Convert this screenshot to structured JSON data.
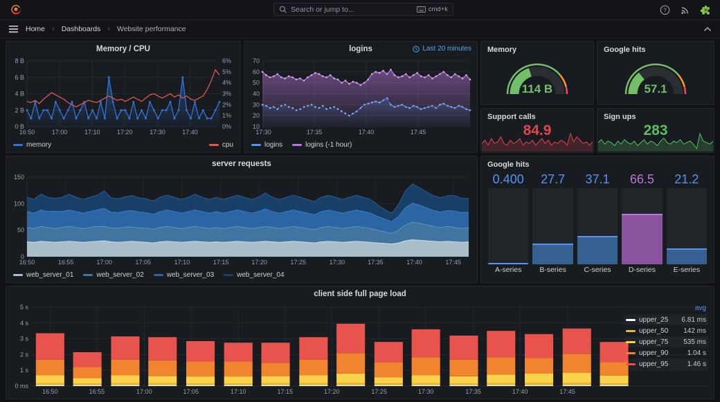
{
  "topbar": {
    "search_placeholder": "Search or jump to...",
    "shortcut": "cmd+k"
  },
  "breadcrumb": {
    "items": [
      "Home",
      "Dashboards",
      "Website performance"
    ]
  },
  "panels": {
    "memcpu": {
      "title": "Memory / CPU",
      "yleft": [
        "0 B",
        "2 B",
        "4 B",
        "6 B",
        "8 B"
      ],
      "yright": [
        "0%",
        "1%",
        "2%",
        "3%",
        "4%",
        "5%",
        "6%"
      ],
      "xticks": {
        "labels": [
          "16:50",
          "17:00",
          "17:10",
          "17:20",
          "17:30",
          "17:40"
        ],
        "fracs": [
          0,
          0.169,
          0.339,
          0.508,
          0.678,
          0.847
        ]
      },
      "series": {
        "memory": {
          "name": "memory",
          "color": "#3274D9",
          "ymax": 8,
          "vals": [
            2,
            1,
            3,
            1,
            2,
            2,
            1,
            3,
            2,
            1,
            2,
            3,
            1,
            2,
            3,
            1,
            2,
            1,
            3,
            1,
            6,
            3,
            1,
            2,
            2,
            1,
            3,
            1,
            2,
            1,
            3,
            2,
            1,
            2,
            2,
            3,
            1,
            2,
            6,
            2,
            1,
            3,
            1,
            2,
            1,
            1,
            2,
            3
          ]
        },
        "cpu": {
          "name": "cpu",
          "color": "#E0584E",
          "ymax": 6,
          "vals": [
            2.3,
            2.2,
            2.4,
            2.1,
            2.5,
            2.8,
            3.1,
            2.9,
            2.7,
            2.5,
            2.2,
            2.0,
            1.8,
            2.0,
            2.2,
            2.4,
            2.3,
            2.2,
            2.4,
            2.6,
            2.8,
            2.6,
            2.4,
            2.5,
            2.3,
            2.5,
            2.7,
            2.5,
            2.3,
            2.6,
            2.9,
            3.0,
            2.8,
            2.6,
            2.8,
            3.0,
            2.7,
            2.9,
            2.6,
            2.8,
            2.5,
            2.4,
            2.6,
            2.8,
            3.4,
            4.2,
            5.2,
            4.7
          ]
        }
      },
      "legend": [
        {
          "label": "memory",
          "color": "#3274D9"
        },
        {
          "label": "cpu",
          "color": "#E0584E"
        }
      ]
    },
    "logins": {
      "title": "logins",
      "time_override": "Last 20 minutes",
      "ylabels": [
        "10",
        "20",
        "30",
        "40",
        "50",
        "60",
        "70"
      ],
      "ymin": 10,
      "ymax": 70,
      "xticks": {
        "labels": [
          "17:30",
          "17:35",
          "17:40",
          "17:45"
        ],
        "fracs": [
          0.005,
          0.25,
          0.5,
          0.75
        ]
      },
      "series": {
        "prev": {
          "name": "logins (-1 hour)",
          "color": "#B877D9",
          "dot": "#D2A8E8",
          "vals": [
            60,
            57,
            55,
            56,
            58,
            55,
            54,
            56,
            55,
            53,
            54,
            52,
            55,
            57,
            59,
            58,
            56,
            55,
            57,
            54,
            53,
            50,
            52,
            49,
            51,
            50,
            48,
            50,
            53,
            58,
            60,
            59,
            61,
            58,
            62,
            57,
            55,
            56,
            58,
            55,
            57,
            59,
            56,
            55,
            57,
            54,
            56,
            58,
            60,
            57,
            55,
            58,
            56,
            54,
            57,
            53
          ]
        },
        "cur": {
          "name": "logins",
          "color": "#5794F2",
          "dot": "#7FAcF5",
          "vals": [
            30,
            29,
            27,
            28,
            26,
            29,
            30,
            28,
            27,
            25,
            26,
            28,
            29,
            30,
            28,
            27,
            29,
            26,
            27,
            28,
            26,
            24,
            22,
            20,
            22,
            24,
            27,
            30,
            31,
            32,
            33,
            32,
            34,
            36,
            30,
            28,
            29,
            30,
            28,
            27,
            29,
            28,
            26,
            27,
            28,
            29,
            27,
            30,
            31,
            29,
            28,
            27,
            29,
            28,
            26,
            25
          ]
        }
      },
      "legend": [
        {
          "label": "logins",
          "color": "#5794F2"
        },
        {
          "label": "logins (-1 hour)",
          "color": "#B877D9"
        }
      ]
    },
    "gauge_mem": {
      "title": "Memory",
      "value": "114 B",
      "pct": 0.4,
      "color": "#73BF69"
    },
    "gauge_google": {
      "title": "Google hits",
      "value": "57.1",
      "pct": 0.29,
      "color": "#73BF69"
    },
    "support": {
      "title": "Support calls",
      "value": "84.9",
      "color": "#E0454E",
      "spark": [
        4,
        6,
        3,
        7,
        4,
        5,
        8,
        4,
        3,
        6,
        4,
        5,
        7,
        3,
        5,
        4,
        6,
        3,
        5,
        7,
        4,
        6,
        3,
        5,
        4,
        6,
        5,
        3,
        10,
        5,
        8,
        6,
        4,
        5,
        3,
        5
      ]
    },
    "signups": {
      "title": "Sign ups",
      "value": "283",
      "color": "#5CBE60",
      "spark": [
        5,
        7,
        4,
        6,
        5,
        3,
        6,
        4,
        7,
        5,
        4,
        6,
        3,
        5,
        7,
        4,
        6,
        5,
        3,
        6,
        8,
        5,
        4,
        6,
        5,
        7,
        4,
        5,
        6,
        4,
        1,
        11,
        6,
        5,
        4,
        6
      ]
    },
    "server": {
      "title": "server requests",
      "ylabels": [
        "0",
        "50",
        "100",
        "150"
      ],
      "ymax": 150,
      "xticks": {
        "labels": [
          "16:50",
          "16:55",
          "17:00",
          "17:05",
          "17:10",
          "17:15",
          "17:20",
          "17:25",
          "17:30",
          "17:35",
          "17:40",
          "17:45"
        ],
        "fracs": [
          0,
          0.088,
          0.175,
          0.263,
          0.351,
          0.439,
          0.526,
          0.614,
          0.702,
          0.789,
          0.877,
          0.965
        ]
      },
      "series": [
        {
          "name": "web_server_01",
          "fill": "#A8BFCB",
          "line": "#CBDCE5",
          "vals": [
            28,
            27,
            29,
            28,
            27,
            28,
            29,
            28,
            27,
            28,
            29,
            30,
            28,
            27,
            28,
            29,
            28,
            27,
            26,
            28,
            29,
            28,
            27,
            28,
            29,
            28,
            27,
            28,
            27,
            28,
            29,
            28,
            27,
            28,
            29,
            28,
            27,
            28,
            29,
            28,
            27,
            26,
            28,
            29,
            28,
            27,
            28,
            29,
            28,
            27,
            26,
            25,
            24,
            26,
            30,
            32,
            31,
            30,
            29,
            28,
            29,
            28,
            27,
            28
          ]
        },
        {
          "name": "web_server_02",
          "fill": "#41759F",
          "line": "#5E93BC",
          "vals": [
            27,
            26,
            28,
            27,
            26,
            27,
            28,
            27,
            26,
            27,
            28,
            27,
            26,
            27,
            28,
            27,
            26,
            27,
            26,
            27,
            28,
            27,
            26,
            27,
            28,
            27,
            26,
            27,
            26,
            27,
            28,
            27,
            26,
            27,
            28,
            27,
            26,
            27,
            28,
            27,
            26,
            25,
            27,
            28,
            27,
            26,
            27,
            28,
            27,
            26,
            24,
            22,
            20,
            24,
            30,
            33,
            32,
            30,
            28,
            27,
            28,
            27,
            26,
            27
          ]
        },
        {
          "name": "web_server_03",
          "fill": "#2B65A4",
          "line": "#3D7DC4",
          "vals": [
            30,
            29,
            31,
            30,
            33,
            30,
            31,
            30,
            29,
            30,
            31,
            34,
            30,
            29,
            30,
            31,
            30,
            29,
            28,
            30,
            31,
            30,
            29,
            30,
            31,
            30,
            29,
            30,
            29,
            30,
            31,
            30,
            29,
            30,
            33,
            30,
            29,
            30,
            31,
            30,
            29,
            28,
            30,
            31,
            30,
            29,
            30,
            31,
            30,
            29,
            26,
            24,
            22,
            26,
            33,
            36,
            34,
            32,
            30,
            29,
            30,
            31,
            30,
            29
          ]
        },
        {
          "name": "web_server_04",
          "fill": "#173F68",
          "line": "#2B5E94",
          "vals": [
            27,
            26,
            30,
            27,
            24,
            27,
            30,
            27,
            26,
            27,
            28,
            33,
            27,
            26,
            27,
            28,
            27,
            26,
            25,
            27,
            28,
            27,
            26,
            27,
            30,
            27,
            26,
            27,
            26,
            27,
            28,
            27,
            26,
            27,
            30,
            27,
            26,
            27,
            28,
            27,
            26,
            25,
            27,
            28,
            27,
            26,
            27,
            28,
            27,
            26,
            22,
            18,
            16,
            22,
            32,
            36,
            33,
            30,
            28,
            27,
            28,
            29,
            27,
            26
          ]
        }
      ]
    },
    "bargauge": {
      "title": "Google hits",
      "bars": [
        {
          "label": "A-series",
          "value": "0.400",
          "pct": 0.4,
          "color": "#5794F2",
          "fill": "#3A66A0"
        },
        {
          "label": "B-series",
          "value": "27.7",
          "pct": 27.7,
          "color": "#5794F2",
          "fill": "#35608F"
        },
        {
          "label": "C-series",
          "value": "37.1",
          "pct": 37.1,
          "color": "#5794F2",
          "fill": "#35608F"
        },
        {
          "label": "D-series",
          "value": "66.5",
          "pct": 66.5,
          "color": "#B877D9",
          "fill": "#8A539E"
        },
        {
          "label": "E-series",
          "value": "21.2",
          "pct": 21.2,
          "color": "#5794F2",
          "fill": "#35608F"
        }
      ]
    },
    "pageload": {
      "title": "client side full page load",
      "ylabels": [
        "0 ms",
        "1 s",
        "2 s",
        "3 s",
        "4 s",
        "5 s"
      ],
      "ymax": 5,
      "xticks": {
        "labels": [
          "16:50",
          "16:55",
          "17:00",
          "17:05",
          "17:10",
          "17:15",
          "17:20",
          "17:25",
          "17:30",
          "17:35",
          "17:40",
          "17:45"
        ],
        "fracs": [
          0.028,
          0.097,
          0.167,
          0.236,
          0.306,
          0.375,
          0.444,
          0.514,
          0.583,
          0.653,
          0.722,
          0.792
        ]
      },
      "bar_fracs": [
        0.028,
        0.083,
        0.139,
        0.194,
        0.25,
        0.306,
        0.361,
        0.417,
        0.472,
        0.528,
        0.583,
        0.639,
        0.694,
        0.75,
        0.806,
        0.861
      ],
      "seg_colors": [
        "#FFFFFF",
        "#EAB839",
        "#FAD34A",
        "#F0842F",
        "#E8544D"
      ],
      "bars": [
        [
          0.06,
          0.12,
          0.5,
          1.0,
          1.67
        ],
        [
          0.06,
          0.1,
          0.35,
          0.7,
          0.94
        ],
        [
          0.06,
          0.12,
          0.5,
          1.0,
          1.47
        ],
        [
          0.06,
          0.12,
          0.45,
          1.0,
          1.47
        ],
        [
          0.06,
          0.1,
          0.45,
          0.95,
          1.29
        ],
        [
          0.06,
          0.1,
          0.45,
          0.95,
          1.19
        ],
        [
          0.06,
          0.12,
          0.45,
          0.85,
          1.27
        ],
        [
          0.06,
          0.12,
          0.5,
          1.0,
          1.42
        ],
        [
          0.06,
          0.13,
          0.6,
          1.3,
          1.86
        ],
        [
          0.06,
          0.1,
          0.4,
          0.95,
          1.29
        ],
        [
          0.06,
          0.12,
          0.5,
          1.15,
          1.77
        ],
        [
          0.06,
          0.11,
          0.45,
          1.05,
          1.53
        ],
        [
          0.06,
          0.12,
          0.55,
          1.1,
          1.67
        ],
        [
          0.06,
          0.13,
          0.6,
          1.0,
          1.51
        ],
        [
          0.06,
          0.14,
          0.65,
          1.2,
          1.6
        ],
        [
          0.06,
          0.11,
          0.5,
          0.85,
          1.28
        ]
      ],
      "legend": {
        "header": "avg",
        "rows": [
          {
            "name": "upper_25",
            "value": "6.81 ms",
            "color": "#FFFFFF"
          },
          {
            "name": "upper_50",
            "value": "142 ms",
            "color": "#EAB839"
          },
          {
            "name": "upper_75",
            "value": "535 ms",
            "color": "#FAD34A"
          },
          {
            "name": "upper_90",
            "value": "1.04 s",
            "color": "#F0842F"
          },
          {
            "name": "upper_95",
            "value": "1.46 s",
            "color": "#E8544D"
          }
        ]
      }
    }
  }
}
